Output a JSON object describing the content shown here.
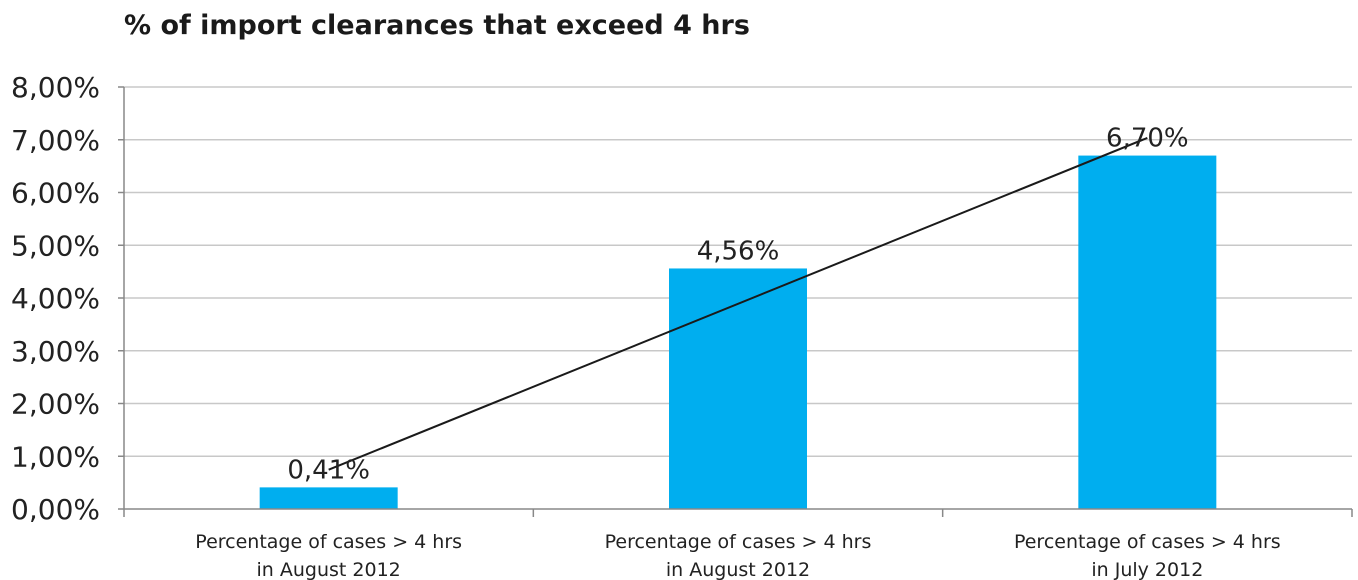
{
  "chart_data": {
    "type": "bar",
    "title": "% of import clearances that exceed 4 hrs",
    "xlabel": "",
    "ylabel": "",
    "categories": [
      [
        "Percentage of cases > 4 hrs",
        "in August 2012"
      ],
      [
        "Percentage of cases > 4 hrs",
        "in August 2012"
      ],
      [
        "Percentage of cases > 4 hrs",
        "in July 2012"
      ]
    ],
    "values": [
      0.0041,
      0.0456,
      0.067
    ],
    "data_labels": [
      "0,41%",
      "4,56%",
      "6,70%"
    ],
    "yticks": [
      "0,00%",
      "1,00%",
      "2,00%",
      "3,00%",
      "4,00%",
      "5,00%",
      "6,00%",
      "7,00%",
      "8,00%"
    ],
    "ylim": [
      0,
      0.08
    ],
    "grid": true,
    "trendline": "linear",
    "legend": "none",
    "colors": {
      "bar": "#00aeef",
      "trendline": "#1a1a1a",
      "grid": "#c8c8c8",
      "axis": "#888888"
    }
  }
}
